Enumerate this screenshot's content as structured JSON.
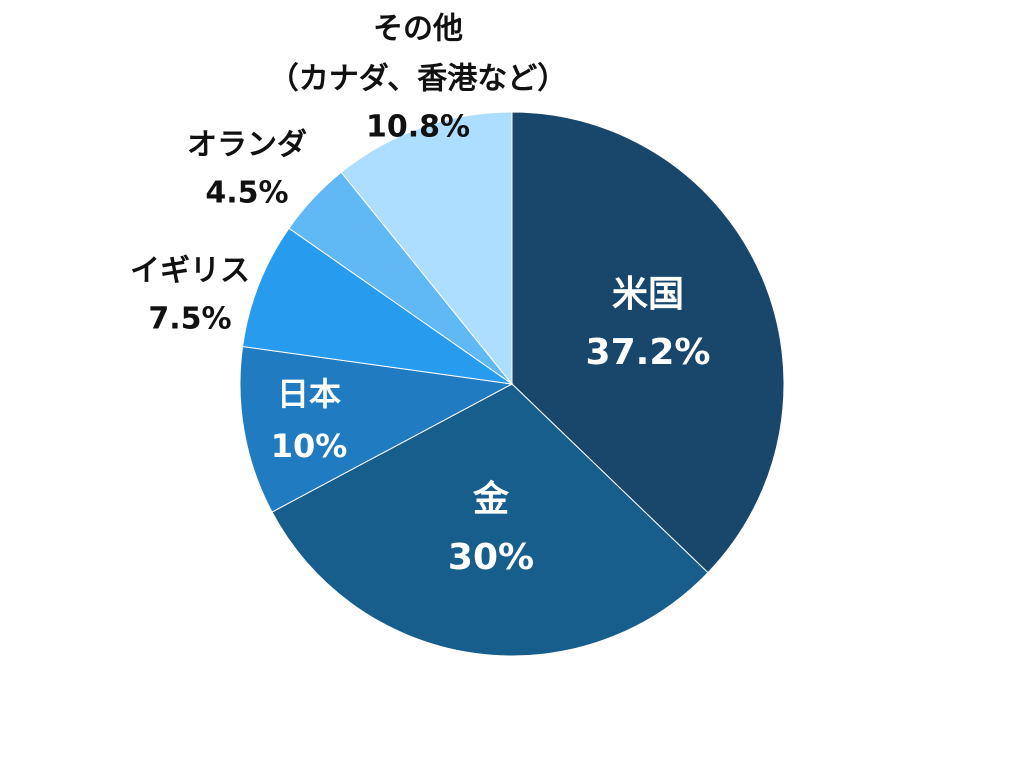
{
  "chart_data": {
    "type": "pie",
    "title": "",
    "start_angle_deg": 0,
    "direction": "clockwise",
    "slices": [
      {
        "label": "米国",
        "sublabel": "",
        "value": 37.2,
        "value_label": "37.2%",
        "color": "#19466b",
        "label_placement": "inside",
        "label_color": "#ffffff"
      },
      {
        "label": "金",
        "sublabel": "",
        "value": 30,
        "value_label": "30%",
        "color": "#175e8d",
        "label_placement": "inside",
        "label_color": "#ffffff"
      },
      {
        "label": "日本",
        "sublabel": "",
        "value": 10,
        "value_label": "10%",
        "color": "#207bc1",
        "label_placement": "inside",
        "label_color": "#ffffff"
      },
      {
        "label": "イギリス",
        "sublabel": "",
        "value": 7.5,
        "value_label": "7.5%",
        "color": "#279bed",
        "label_placement": "outside",
        "label_color": "#111111"
      },
      {
        "label": "オランダ",
        "sublabel": "",
        "value": 4.5,
        "value_label": "4.5%",
        "color": "#60b8f5",
        "label_placement": "outside",
        "label_color": "#111111"
      },
      {
        "label": "その他",
        "sublabel": "（カナダ、香港など）",
        "value": 10.8,
        "value_label": "10.8%",
        "color": "#addeff",
        "label_placement": "outside",
        "label_color": "#111111"
      }
    ]
  }
}
